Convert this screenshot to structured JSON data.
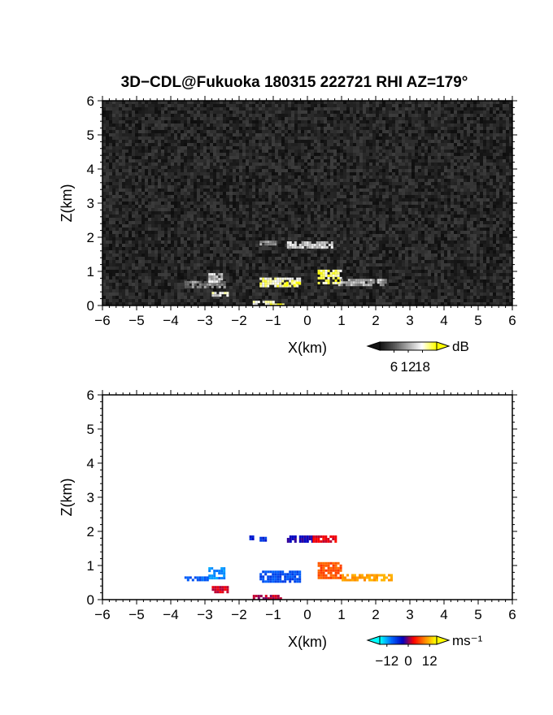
{
  "title": "3D−CDL@Fukuoka 180315 222721 RHI AZ=179°",
  "chart_data": [
    {
      "type": "heatmap",
      "panel": "reflectivity",
      "xlabel": "X(km)",
      "ylabel": "Z(km)",
      "xlim": [
        -6,
        6
      ],
      "ylim": [
        0,
        6
      ],
      "xticks": [
        -6,
        -5,
        -4,
        -3,
        -2,
        -1,
        0,
        1,
        2,
        3,
        4,
        5,
        6
      ],
      "yticks": [
        0,
        1,
        2,
        3,
        4,
        5,
        6
      ],
      "background": "#1a1a1a",
      "colorbar": {
        "unit": "dB",
        "ticks": [
          6,
          12,
          18
        ],
        "colors": [
          "#141414",
          "#555555",
          "#aaaaaa",
          "#ffffff",
          "#ffff00"
        ]
      },
      "echoes": [
        {
          "x0": -0.6,
          "x1": 0.7,
          "z0": 1.72,
          "z1": 1.88,
          "value": 12
        },
        {
          "x0": -1.4,
          "x1": -0.9,
          "z0": 1.8,
          "z1": 1.9,
          "value": 8
        },
        {
          "x0": -1.4,
          "x1": -0.2,
          "z0": 0.58,
          "z1": 0.82,
          "value": 16
        },
        {
          "x0": -0.7,
          "x1": -0.2,
          "z0": 0.58,
          "z1": 0.7,
          "value": 19
        },
        {
          "x0": 0.3,
          "x1": 1.0,
          "z0": 0.65,
          "z1": 1.05,
          "value": 17
        },
        {
          "x0": 0.9,
          "x1": 2.3,
          "z0": 0.6,
          "z1": 0.78,
          "value": 10
        },
        {
          "x0": -3.6,
          "x1": -2.4,
          "z0": 0.55,
          "z1": 0.72,
          "value": 8
        },
        {
          "x0": -2.9,
          "x1": -2.5,
          "z0": 0.72,
          "z1": 0.95,
          "value": 12
        },
        {
          "x0": -2.8,
          "x1": -2.3,
          "z0": 0.28,
          "z1": 0.4,
          "value": 14
        },
        {
          "x0": -1.6,
          "x1": -1.0,
          "z0": 0.05,
          "z1": 0.14,
          "value": 14
        },
        {
          "x0": -1.1,
          "x1": -0.7,
          "z0": 0.0,
          "z1": 0.06,
          "value": 19
        }
      ]
    },
    {
      "type": "heatmap",
      "panel": "doppler velocity",
      "xlabel": "X(km)",
      "ylabel": "Z(km)",
      "xlim": [
        -6,
        6
      ],
      "ylim": [
        0,
        6
      ],
      "xticks": [
        -6,
        -5,
        -4,
        -3,
        -2,
        -1,
        0,
        1,
        2,
        3,
        4,
        5,
        6
      ],
      "yticks": [
        0,
        1,
        2,
        3,
        4,
        5,
        6
      ],
      "background": "#ffffff",
      "colorbar": {
        "unit": "ms⁻¹",
        "ticks": [
          -12,
          0,
          12
        ],
        "colors": [
          "#00ffff",
          "#0066ff",
          "#0000c0",
          "#ff0000",
          "#ff8800",
          "#ffff00"
        ]
      },
      "echoes": [
        {
          "x0": -0.6,
          "x1": 0.15,
          "z0": 1.72,
          "z1": 1.88,
          "value": -3
        },
        {
          "x0": 0.15,
          "x1": 0.8,
          "z0": 1.68,
          "z1": 1.88,
          "value": 3
        },
        {
          "x0": -1.7,
          "x1": -1.6,
          "z0": 1.75,
          "z1": 1.88,
          "value": -5
        },
        {
          "x0": -1.4,
          "x1": -1.2,
          "z0": 1.74,
          "z1": 1.84,
          "value": -6
        },
        {
          "x0": -1.4,
          "x1": -0.2,
          "z0": 0.55,
          "z1": 0.85,
          "value": -8
        },
        {
          "x0": 0.3,
          "x1": 1.0,
          "z0": 0.65,
          "z1": 1.1,
          "value": 7
        },
        {
          "x0": 1.0,
          "x1": 2.5,
          "z0": 0.58,
          "z1": 0.75,
          "value": 11
        },
        {
          "x0": -2.9,
          "x1": -2.4,
          "z0": 0.65,
          "z1": 0.95,
          "value": -11
        },
        {
          "x0": -3.6,
          "x1": -2.9,
          "z0": 0.55,
          "z1": 0.68,
          "value": -9
        },
        {
          "x0": -2.8,
          "x1": -2.3,
          "z0": 0.25,
          "z1": 0.4,
          "value": 2
        },
        {
          "x0": -1.6,
          "x1": -0.8,
          "z0": 0.02,
          "z1": 0.14,
          "value": 1
        }
      ]
    }
  ]
}
